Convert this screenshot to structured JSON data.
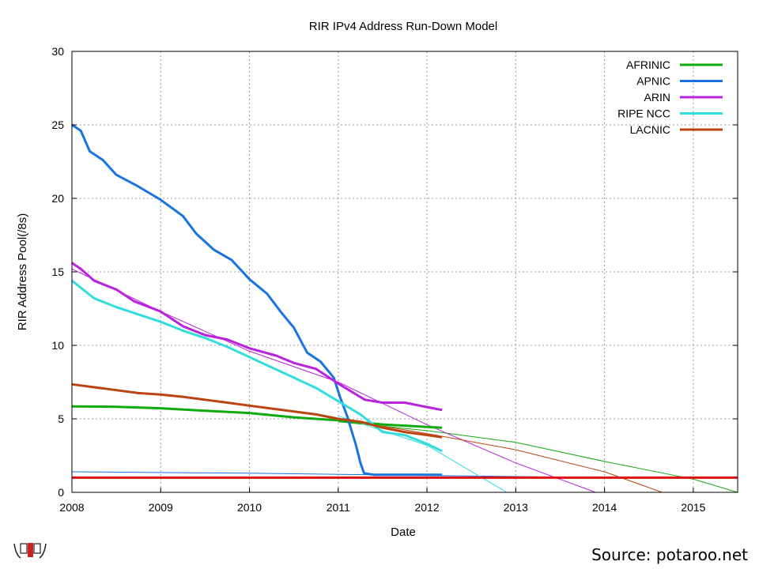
{
  "chart_data": {
    "type": "line",
    "title": "RIR IPv4 Address Run-Down Model",
    "xlabel": "Date",
    "ylabel": "RIR Address Pool(/8s)",
    "xlim": [
      2008,
      2015.5
    ],
    "ylim": [
      0,
      30
    ],
    "xticks": [
      "2008",
      "2009",
      "2010",
      "2011",
      "2012",
      "2013",
      "2014",
      "2015"
    ],
    "yticks": [
      "0",
      "5",
      "10",
      "15",
      "20",
      "25",
      "30"
    ],
    "grid": true,
    "legend_position": "top-right",
    "series": [
      {
        "name": "AFRINIC",
        "color": "#11aa11",
        "points": [
          [
            2008,
            5.85
          ],
          [
            2008.5,
            5.82
          ],
          [
            2009,
            5.72
          ],
          [
            2009.5,
            5.55
          ],
          [
            2010,
            5.4
          ],
          [
            2010.5,
            5.1
          ],
          [
            2011,
            4.9
          ],
          [
            2011.5,
            4.62
          ],
          [
            2012,
            4.45
          ],
          [
            2012.17,
            4.4
          ]
        ]
      },
      {
        "name": "APNIC",
        "color": "#1874e0",
        "points": [
          [
            2008,
            25
          ],
          [
            2008.1,
            24.6
          ],
          [
            2008.2,
            23.2
          ],
          [
            2008.35,
            22.6
          ],
          [
            2008.5,
            21.6
          ],
          [
            2008.75,
            20.8
          ],
          [
            2009,
            19.9
          ],
          [
            2009.25,
            18.8
          ],
          [
            2009.4,
            17.6
          ],
          [
            2009.6,
            16.5
          ],
          [
            2009.8,
            15.8
          ],
          [
            2010,
            14.5
          ],
          [
            2010.2,
            13.5
          ],
          [
            2010.35,
            12.3
          ],
          [
            2010.5,
            11.2
          ],
          [
            2010.65,
            9.5
          ],
          [
            2010.8,
            8.9
          ],
          [
            2010.95,
            7.8
          ],
          [
            2011.02,
            6.5
          ],
          [
            2011.1,
            5.2
          ],
          [
            2011.2,
            3.2
          ],
          [
            2011.25,
            2
          ],
          [
            2011.29,
            1.3
          ],
          [
            2011.4,
            1.2
          ],
          [
            2012.17,
            1.2
          ]
        ]
      },
      {
        "name": "ARIN",
        "color": "#bb22dd",
        "points": [
          [
            2008,
            15.6
          ],
          [
            2008.1,
            15.2
          ],
          [
            2008.25,
            14.4
          ],
          [
            2008.5,
            13.8
          ],
          [
            2008.7,
            13.0
          ],
          [
            2009,
            12.3
          ],
          [
            2009.25,
            11.3
          ],
          [
            2009.5,
            10.7
          ],
          [
            2009.75,
            10.4
          ],
          [
            2010,
            9.8
          ],
          [
            2010.3,
            9.3
          ],
          [
            2010.5,
            8.8
          ],
          [
            2010.75,
            8.4
          ],
          [
            2011,
            7.4
          ],
          [
            2011.3,
            6.3
          ],
          [
            2011.5,
            6.1
          ],
          [
            2011.75,
            6.1
          ],
          [
            2012,
            5.8
          ],
          [
            2012.17,
            5.6
          ]
        ]
      },
      {
        "name": "RIPE NCC",
        "color": "#33dddd",
        "points": [
          [
            2008,
            14.4
          ],
          [
            2008.25,
            13.2
          ],
          [
            2008.5,
            12.6
          ],
          [
            2008.75,
            12.1
          ],
          [
            2009,
            11.6
          ],
          [
            2009.25,
            11.0
          ],
          [
            2009.5,
            10.5
          ],
          [
            2009.75,
            9.9
          ],
          [
            2010,
            9.2
          ],
          [
            2010.25,
            8.5
          ],
          [
            2010.5,
            7.8
          ],
          [
            2010.75,
            7.1
          ],
          [
            2011,
            6.2
          ],
          [
            2011.25,
            5.3
          ],
          [
            2011.5,
            4.1
          ],
          [
            2011.75,
            3.9
          ],
          [
            2012,
            3.3
          ],
          [
            2012.17,
            2.8
          ]
        ]
      },
      {
        "name": "LACNIC",
        "color": "#bb4411",
        "points": [
          [
            2008,
            7.35
          ],
          [
            2008.25,
            7.15
          ],
          [
            2008.5,
            6.95
          ],
          [
            2008.75,
            6.75
          ],
          [
            2009,
            6.65
          ],
          [
            2009.25,
            6.5
          ],
          [
            2009.5,
            6.3
          ],
          [
            2009.75,
            6.1
          ],
          [
            2010,
            5.9
          ],
          [
            2010.25,
            5.7
          ],
          [
            2010.5,
            5.5
          ],
          [
            2010.75,
            5.3
          ],
          [
            2011,
            5.0
          ],
          [
            2011.25,
            4.8
          ],
          [
            2011.5,
            4.4
          ],
          [
            2011.75,
            4.1
          ],
          [
            2012,
            3.9
          ],
          [
            2012.17,
            3.75
          ]
        ]
      }
    ],
    "model_lines": [
      {
        "color": "#11aa11",
        "points": [
          [
            2011,
            4.8
          ],
          [
            2012,
            4.2
          ],
          [
            2013,
            3.4
          ],
          [
            2014,
            2.1
          ],
          [
            2015,
            0.9
          ],
          [
            2015.5,
            0
          ]
        ]
      },
      {
        "color": "#1874e0",
        "points": [
          [
            2008,
            1.4
          ],
          [
            2010,
            1.3
          ],
          [
            2012,
            1.15
          ],
          [
            2014,
            1.0
          ],
          [
            2015.5,
            1.0
          ]
        ]
      },
      {
        "color": "#bb22dd",
        "points": [
          [
            2008,
            15.2
          ],
          [
            2009,
            12.3
          ],
          [
            2010,
            9.6
          ],
          [
            2011,
            7.5
          ],
          [
            2012,
            4.6
          ],
          [
            2013,
            2.0
          ],
          [
            2013.9,
            0
          ]
        ]
      },
      {
        "color": "#33dddd",
        "points": [
          [
            2011,
            5.2
          ],
          [
            2012,
            3.2
          ],
          [
            2012.9,
            0
          ]
        ]
      },
      {
        "color": "#bb4411",
        "points": [
          [
            2011.5,
            4.5
          ],
          [
            2012,
            4.0
          ],
          [
            2013,
            2.9
          ],
          [
            2014,
            1.4
          ],
          [
            2014.65,
            0
          ]
        ]
      }
    ],
    "threshold": {
      "value": 1,
      "color": "#dd1111"
    }
  },
  "source_text": "Source: potaroo.net"
}
